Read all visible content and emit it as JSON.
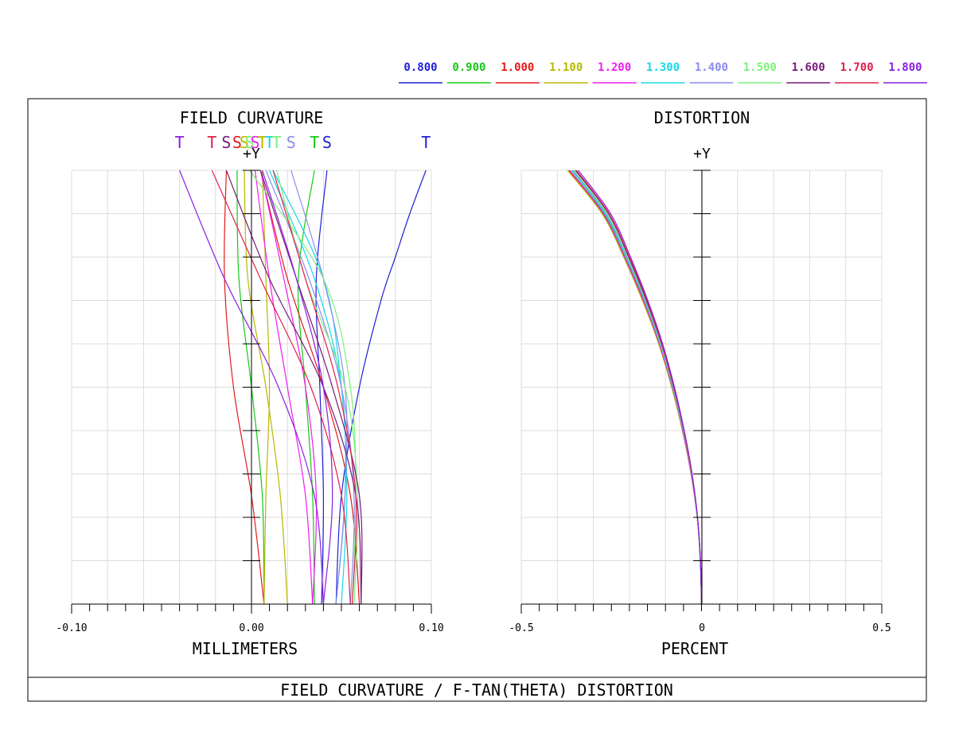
{
  "footer_title": "FIELD CURVATURE / F-TAN(THETA) DISTORTION",
  "legend": [
    {
      "label": "0.800",
      "color": "#1f1fd6"
    },
    {
      "label": "0.900",
      "color": "#17c817"
    },
    {
      "label": "1.000",
      "color": "#e31b1b"
    },
    {
      "label": "1.100",
      "color": "#b8b800"
    },
    {
      "label": "1.200",
      "color": "#f01cf0"
    },
    {
      "label": "1.300",
      "color": "#17d7e6"
    },
    {
      "label": "1.400",
      "color": "#8c8cf0"
    },
    {
      "label": "1.500",
      "color": "#7cf07c"
    },
    {
      "label": "1.600",
      "color": "#7a1a7a"
    },
    {
      "label": "1.700",
      "color": "#e0204c"
    },
    {
      "label": "1.800",
      "color": "#8a1fe0"
    }
  ],
  "chart_data": [
    {
      "type": "line",
      "title": "FIELD CURVATURE",
      "xlabel": "MILLIMETERS",
      "ylabel": "+Y",
      "xlim": [
        -0.1,
        0.1
      ],
      "ylim": [
        0,
        1
      ],
      "tick_labels": [
        "-0.10",
        "0.00",
        "0.10"
      ],
      "grid": true,
      "marker_labels": [
        {
          "text": "T",
          "x": -0.04,
          "color": "#8a1fe0"
        },
        {
          "text": "T",
          "x": -0.022,
          "color": "#e0204c"
        },
        {
          "text": "S",
          "x": -0.014,
          "color": "#7a1a7a"
        },
        {
          "text": "S",
          "x": -0.008,
          "color": "#e31b1b"
        },
        {
          "text": "S",
          "x": -0.004,
          "color": "#b8b800"
        },
        {
          "text": "S",
          "x": -0.001,
          "color": "#7cf07c"
        },
        {
          "text": "S",
          "x": 0.002,
          "color": "#f01cf0"
        },
        {
          "text": "T",
          "x": 0.006,
          "color": "#b8b800"
        },
        {
          "text": "T",
          "x": 0.01,
          "color": "#17d7e6"
        },
        {
          "text": "T",
          "x": 0.014,
          "color": "#7cf07c"
        },
        {
          "text": "S",
          "x": 0.022,
          "color": "#8c8cf0"
        },
        {
          "text": "T",
          "x": 0.035,
          "color": "#17c817"
        },
        {
          "text": "S",
          "x": 0.042,
          "color": "#1f1fd6"
        },
        {
          "text": "T",
          "x": 0.097,
          "color": "#1f1fd6"
        }
      ],
      "series": [
        {
          "color": "#1f1fd6",
          "curve": "T",
          "y": [
            0,
            0.25,
            0.5,
            0.7,
            0.8,
            0.9,
            1.0
          ],
          "x": [
            0.047,
            0.05,
            0.06,
            0.072,
            0.08,
            0.088,
            0.097
          ]
        },
        {
          "color": "#1f1fd6",
          "curve": "S",
          "y": [
            0,
            0.25,
            0.5,
            0.75,
            1.0
          ],
          "x": [
            0.039,
            0.04,
            0.038,
            0.036,
            0.042
          ]
        },
        {
          "color": "#17c817",
          "curve": "T",
          "y": [
            0,
            0.25,
            0.5,
            0.75,
            1.0
          ],
          "x": [
            0.035,
            0.034,
            0.03,
            0.026,
            0.035
          ]
        },
        {
          "color": "#17c817",
          "curve": "S",
          "y": [
            0,
            0.25,
            0.5,
            0.75,
            1.0
          ],
          "x": [
            0.007,
            0.006,
            0.0,
            -0.007,
            -0.008
          ]
        },
        {
          "color": "#e31b1b",
          "curve": "T",
          "y": [
            0,
            0.25,
            0.5,
            0.75,
            1.0
          ],
          "x": [
            0.06,
            0.055,
            0.04,
            0.02,
            0.005
          ]
        },
        {
          "color": "#e31b1b",
          "curve": "S",
          "y": [
            0,
            0.25,
            0.5,
            0.75,
            1.0
          ],
          "x": [
            0.007,
            0.0,
            -0.01,
            -0.015,
            -0.014
          ]
        },
        {
          "color": "#b8b800",
          "curve": "T",
          "y": [
            0,
            0.25,
            0.5,
            0.75,
            1.0
          ],
          "x": [
            0.02,
            0.016,
            0.008,
            -0.002,
            -0.004
          ]
        },
        {
          "color": "#b8b800",
          "curve": "S",
          "y": [
            0,
            0.25,
            0.5,
            0.75,
            1.0
          ],
          "x": [
            0.007,
            0.008,
            0.01,
            0.008,
            0.006
          ]
        },
        {
          "color": "#f01cf0",
          "curve": "T",
          "y": [
            0,
            0.25,
            0.5,
            0.75,
            1.0
          ],
          "x": [
            0.034,
            0.03,
            0.02,
            0.01,
            0.002
          ]
        },
        {
          "color": "#f01cf0",
          "curve": "S",
          "y": [
            0,
            0.25,
            0.5,
            0.75,
            1.0
          ],
          "x": [
            0.034,
            0.036,
            0.03,
            0.018,
            0.005
          ]
        },
        {
          "color": "#17d7e6",
          "curve": "T",
          "y": [
            0,
            0.25,
            0.5,
            0.75,
            1.0
          ],
          "x": [
            0.047,
            0.052,
            0.05,
            0.035,
            0.01
          ]
        },
        {
          "color": "#17d7e6",
          "curve": "S",
          "y": [
            0,
            0.25,
            0.5,
            0.75,
            1.0
          ],
          "x": [
            0.05,
            0.053,
            0.05,
            0.04,
            0.012
          ]
        },
        {
          "color": "#8c8cf0",
          "curve": "T",
          "y": [
            0,
            0.25,
            0.5,
            0.75,
            1.0
          ],
          "x": [
            0.055,
            0.057,
            0.05,
            0.032,
            0.008
          ]
        },
        {
          "color": "#8c8cf0",
          "curve": "S",
          "y": [
            0,
            0.25,
            0.5,
            0.75,
            1.0
          ],
          "x": [
            0.047,
            0.052,
            0.052,
            0.04,
            0.022
          ]
        },
        {
          "color": "#7cf07c",
          "curve": "T",
          "y": [
            0,
            0.25,
            0.5,
            0.75,
            1.0
          ],
          "x": [
            0.057,
            0.059,
            0.052,
            0.03,
            0.014
          ]
        },
        {
          "color": "#7cf07c",
          "curve": "S",
          "y": [
            0,
            0.25,
            0.5,
            0.75,
            1.0
          ],
          "x": [
            0.056,
            0.058,
            0.055,
            0.04,
            -0.001
          ]
        },
        {
          "color": "#7a1a7a",
          "curve": "T",
          "y": [
            0,
            0.25,
            0.5,
            0.75,
            1.0
          ],
          "x": [
            0.061,
            0.058,
            0.04,
            0.01,
            -0.014
          ]
        },
        {
          "color": "#7a1a7a",
          "curve": "S",
          "y": [
            0,
            0.25,
            0.5,
            0.75,
            1.0
          ],
          "x": [
            0.061,
            0.06,
            0.045,
            0.025,
            0.005
          ]
        },
        {
          "color": "#e0204c",
          "curve": "T",
          "y": [
            0,
            0.25,
            0.5,
            0.75,
            1.0
          ],
          "x": [
            0.055,
            0.05,
            0.033,
            0.005,
            -0.022
          ]
        },
        {
          "color": "#e0204c",
          "curve": "S",
          "y": [
            0,
            0.25,
            0.5,
            0.75,
            1.0
          ],
          "x": [
            0.056,
            0.058,
            0.048,
            0.03,
            0.012
          ]
        },
        {
          "color": "#8a1fe0",
          "curve": "T",
          "y": [
            0,
            0.25,
            0.5,
            0.75,
            1.0
          ],
          "x": [
            0.04,
            0.035,
            0.015,
            -0.015,
            -0.04
          ]
        },
        {
          "color": "#8a1fe0",
          "curve": "S",
          "y": [
            0,
            0.25,
            0.5,
            0.75,
            1.0
          ],
          "x": [
            0.04,
            0.045,
            0.04,
            0.025,
            0.006
          ]
        }
      ]
    },
    {
      "type": "line",
      "title": "DISTORTION",
      "xlabel": "PERCENT",
      "ylabel": "+Y",
      "xlim": [
        -0.5,
        0.5
      ],
      "ylim": [
        0,
        1
      ],
      "tick_labels": [
        "-0.5",
        "0",
        "0.5"
      ],
      "grid": true,
      "series": [
        {
          "color": "#1f1fd6",
          "y": [
            0,
            0.1,
            0.2,
            0.3,
            0.4,
            0.5,
            0.6,
            0.7,
            0.8,
            0.9,
            1.0
          ],
          "x": [
            0,
            -0.003,
            -0.012,
            -0.028,
            -0.05,
            -0.078,
            -0.113,
            -0.155,
            -0.205,
            -0.262,
            -0.355
          ]
        },
        {
          "color": "#17c817",
          "y": [
            0,
            0.1,
            0.2,
            0.3,
            0.4,
            0.5,
            0.6,
            0.7,
            0.8,
            0.9,
            1.0
          ],
          "x": [
            0,
            -0.003,
            -0.012,
            -0.029,
            -0.052,
            -0.081,
            -0.117,
            -0.16,
            -0.212,
            -0.27,
            -0.365
          ]
        },
        {
          "color": "#e31b1b",
          "y": [
            0,
            0.1,
            0.2,
            0.3,
            0.4,
            0.5,
            0.6,
            0.7,
            0.8,
            0.9,
            1.0
          ],
          "x": [
            0,
            -0.003,
            -0.012,
            -0.029,
            -0.053,
            -0.082,
            -0.118,
            -0.162,
            -0.214,
            -0.273,
            -0.368
          ]
        },
        {
          "color": "#b8b800",
          "y": [
            0,
            0.1,
            0.2,
            0.3,
            0.4,
            0.5,
            0.6,
            0.7,
            0.8,
            0.9,
            1.0
          ],
          "x": [
            0,
            -0.003,
            -0.012,
            -0.029,
            -0.053,
            -0.083,
            -0.119,
            -0.164,
            -0.216,
            -0.276,
            -0.372
          ]
        },
        {
          "color": "#f01cf0",
          "y": [
            0,
            0.1,
            0.2,
            0.3,
            0.4,
            0.5,
            0.6,
            0.7,
            0.8,
            0.9,
            1.0
          ],
          "x": [
            0,
            -0.003,
            -0.012,
            -0.029,
            -0.052,
            -0.081,
            -0.117,
            -0.161,
            -0.213,
            -0.272,
            -0.366
          ]
        },
        {
          "color": "#17d7e6",
          "y": [
            0,
            0.1,
            0.2,
            0.3,
            0.4,
            0.5,
            0.6,
            0.7,
            0.8,
            0.9,
            1.0
          ],
          "x": [
            0,
            -0.003,
            -0.012,
            -0.028,
            -0.051,
            -0.08,
            -0.115,
            -0.158,
            -0.209,
            -0.267,
            -0.36
          ]
        },
        {
          "color": "#8c8cf0",
          "y": [
            0,
            0.1,
            0.2,
            0.3,
            0.4,
            0.5,
            0.6,
            0.7,
            0.8,
            0.9,
            1.0
          ],
          "x": [
            0,
            -0.003,
            -0.012,
            -0.028,
            -0.05,
            -0.079,
            -0.114,
            -0.156,
            -0.207,
            -0.264,
            -0.357
          ]
        },
        {
          "color": "#7cf07c",
          "y": [
            0,
            0.1,
            0.2,
            0.3,
            0.4,
            0.5,
            0.6,
            0.7,
            0.8,
            0.9,
            1.0
          ],
          "x": [
            0,
            -0.003,
            -0.012,
            -0.028,
            -0.05,
            -0.078,
            -0.113,
            -0.155,
            -0.205,
            -0.262,
            -0.354
          ]
        },
        {
          "color": "#7a1a7a",
          "y": [
            0,
            0.1,
            0.2,
            0.3,
            0.4,
            0.5,
            0.6,
            0.7,
            0.8,
            0.9,
            1.0
          ],
          "x": [
            0,
            -0.003,
            -0.011,
            -0.027,
            -0.049,
            -0.077,
            -0.111,
            -0.153,
            -0.202,
            -0.258,
            -0.35
          ]
        },
        {
          "color": "#e0204c",
          "y": [
            0,
            0.1,
            0.2,
            0.3,
            0.4,
            0.5,
            0.6,
            0.7,
            0.8,
            0.9,
            1.0
          ],
          "x": [
            0,
            -0.003,
            -0.011,
            -0.027,
            -0.049,
            -0.076,
            -0.11,
            -0.151,
            -0.2,
            -0.256,
            -0.347
          ]
        },
        {
          "color": "#8a1fe0",
          "y": [
            0,
            0.1,
            0.2,
            0.3,
            0.4,
            0.5,
            0.6,
            0.7,
            0.8,
            0.9,
            1.0
          ],
          "x": [
            0,
            -0.003,
            -0.011,
            -0.026,
            -0.048,
            -0.075,
            -0.108,
            -0.149,
            -0.197,
            -0.252,
            -0.342
          ]
        }
      ]
    }
  ]
}
